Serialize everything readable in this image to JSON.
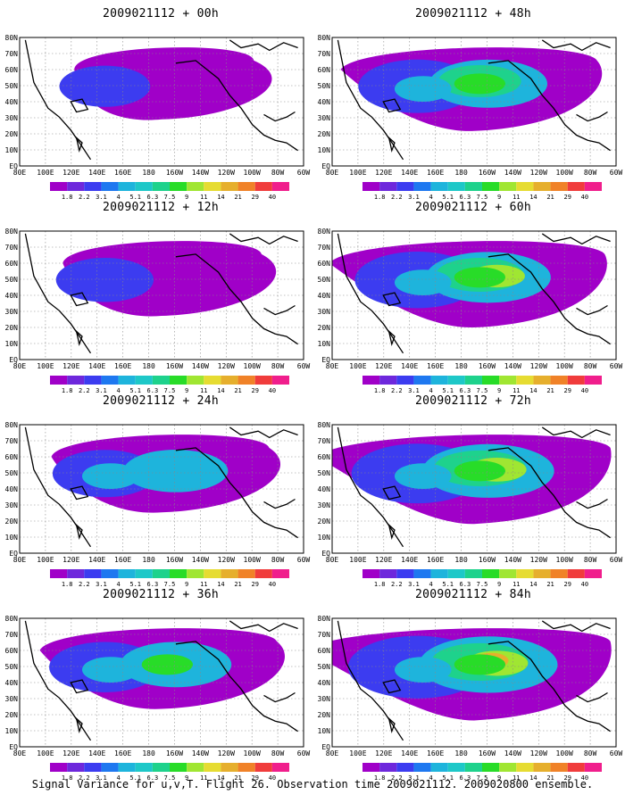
{
  "caption": "Signal Variance for u,v,T. Flight 26. Observation time 2009021112. 2009020800 ensemble.",
  "lat_labels": [
    "80N",
    "70N",
    "60N",
    "50N",
    "40N",
    "30N",
    "20N",
    "10N",
    "EQ"
  ],
  "lon_labels": [
    "80E",
    "100E",
    "120E",
    "140E",
    "160E",
    "180",
    "160W",
    "140W",
    "120W",
    "100W",
    "80W",
    "60W"
  ],
  "colorbar": {
    "levels": [
      "1.8",
      "2.2",
      "3.1",
      "4",
      "5.1",
      "6.3",
      "7.5",
      "9",
      "11",
      "14",
      "21",
      "29",
      "40"
    ],
    "colors": [
      "#a000c8",
      "#6e28dc",
      "#3c3cf0",
      "#1e78f0",
      "#1eb4dc",
      "#1ec8c8",
      "#1ed28c",
      "#28dc28",
      "#a0e632",
      "#e6dc32",
      "#e6af2d",
      "#f08228",
      "#f03c3c",
      "#f01e8c"
    ]
  },
  "panels": [
    {
      "title": "2009021112 + 00h",
      "intensity": 0
    },
    {
      "title": "2009021112 + 48h",
      "intensity": 4
    },
    {
      "title": "2009021112 + 12h",
      "intensity": 1
    },
    {
      "title": "2009021112 + 60h",
      "intensity": 5
    },
    {
      "title": "2009021112 + 24h",
      "intensity": 2
    },
    {
      "title": "2009021112 + 72h",
      "intensity": 6
    },
    {
      "title": "2009021112 + 36h",
      "intensity": 3
    },
    {
      "title": "2009021112 + 84h",
      "intensity": 7
    }
  ]
}
